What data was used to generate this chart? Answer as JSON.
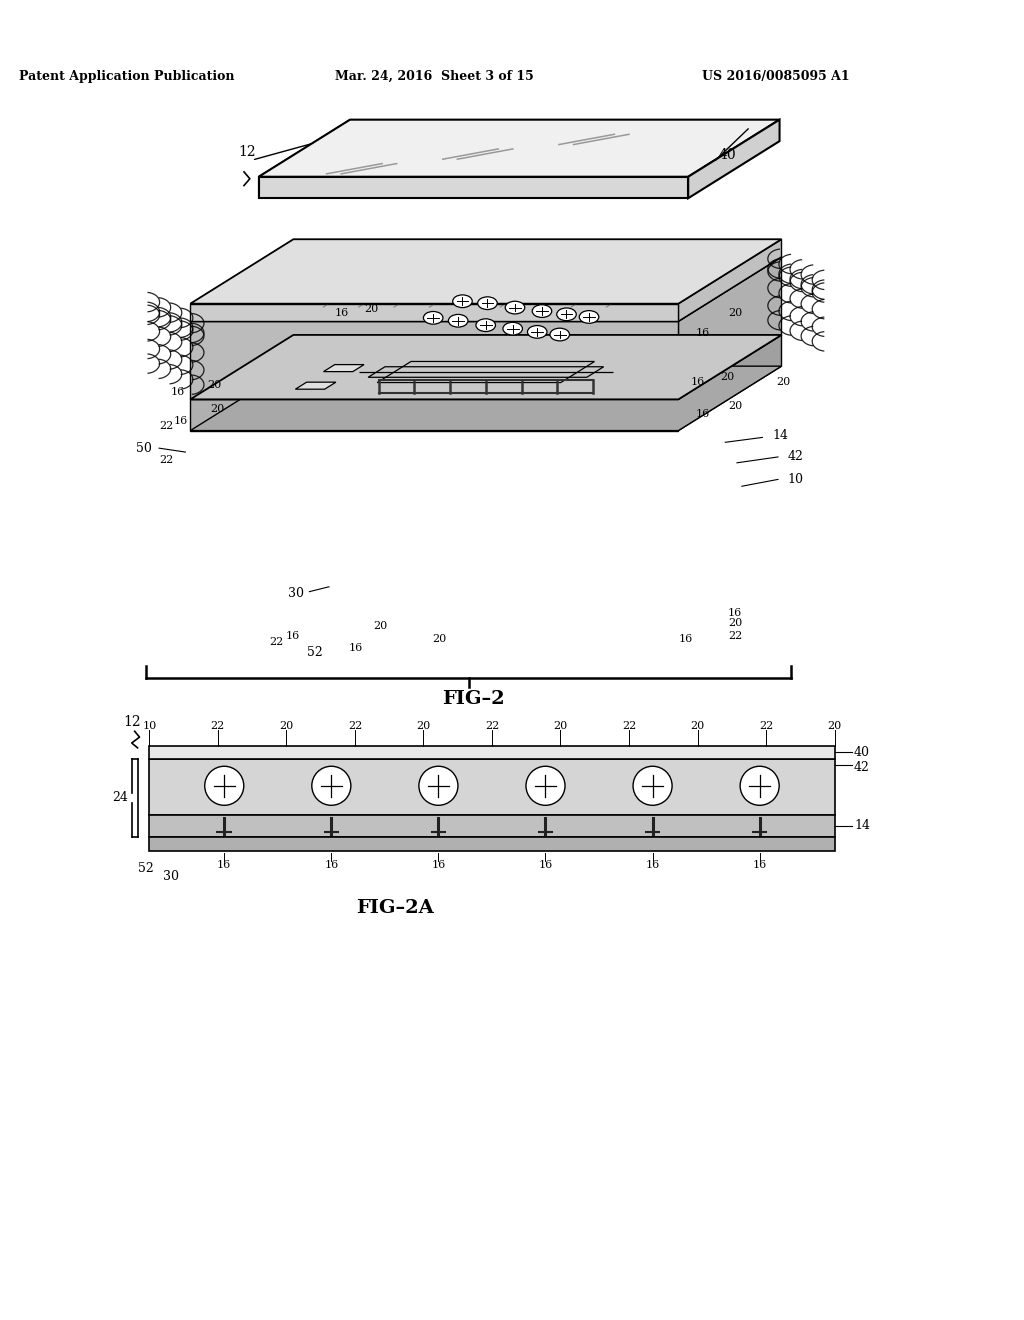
{
  "header_left": "Patent Application Publication",
  "header_mid": "Mar. 24, 2016  Sheet 3 of 15",
  "header_right": "US 2016/0085095 A1",
  "fig2_label": "FIG–2",
  "fig2a_label": "FIG–2A",
  "bg_color": "#ffffff",
  "line_color": "#000000"
}
